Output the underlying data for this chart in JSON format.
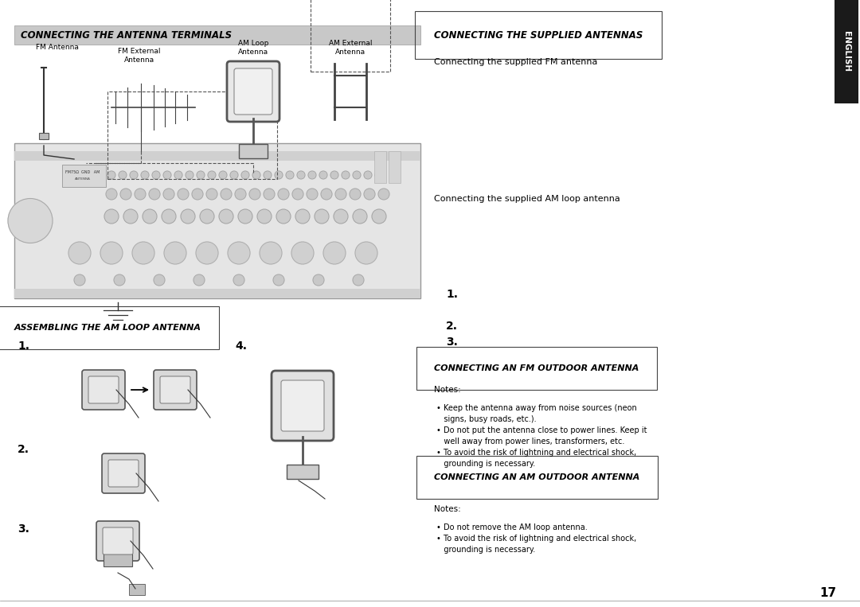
{
  "bg_color": "#ffffff",
  "header1_text": "CONNECTING THE ANTENNA TERMINALS",
  "header1_bg": "#cccccc",
  "header2_text": "CONNECTING THE SUPPLIED ANTENNAS",
  "header3_text": "ASSEMBLING THE AM LOOP ANTENNA",
  "header4_text": "CONNECTING AN FM OUTDOOR ANTENNA",
  "header5_text": "CONNECTING AN AM OUTDOOR ANTENNA",
  "english_tab_text": "ENGLISH",
  "supplied_fm_text": "Connecting the supplied FM antenna",
  "supplied_am_text": "Connecting the supplied AM loop antenna",
  "fm_notes_title": "Notes:",
  "fm_note1": "• Keep the antenna away from noise sources (neon\n   signs, busy roads, etc.).",
  "fm_note2": "• Do not put the antenna close to power lines. Keep it\n   well away from power lines, transformers, etc.",
  "fm_note3": "• To avoid the risk of lightning and electrical shock,\n   grounding is necessary.",
  "am_notes_title": "Notes:",
  "am_note1": "• Do not remove the AM loop antenna.",
  "am_note2": "• To avoid the risk of lightning and electrical shock,\n   grounding is necessary.",
  "page_num": "17",
  "label_fm_antenna": "FM Antenna",
  "label_fm_ext": "FM External\nAntenna",
  "label_am_loop": "AM Loop\nAntenna",
  "label_am_ext": "AM External\nAntenna",
  "step1": "1.",
  "step2": "2.",
  "step3": "3.",
  "step4": "4.",
  "right_step1": "1.",
  "right_step2": "2.",
  "right_step3": "3."
}
